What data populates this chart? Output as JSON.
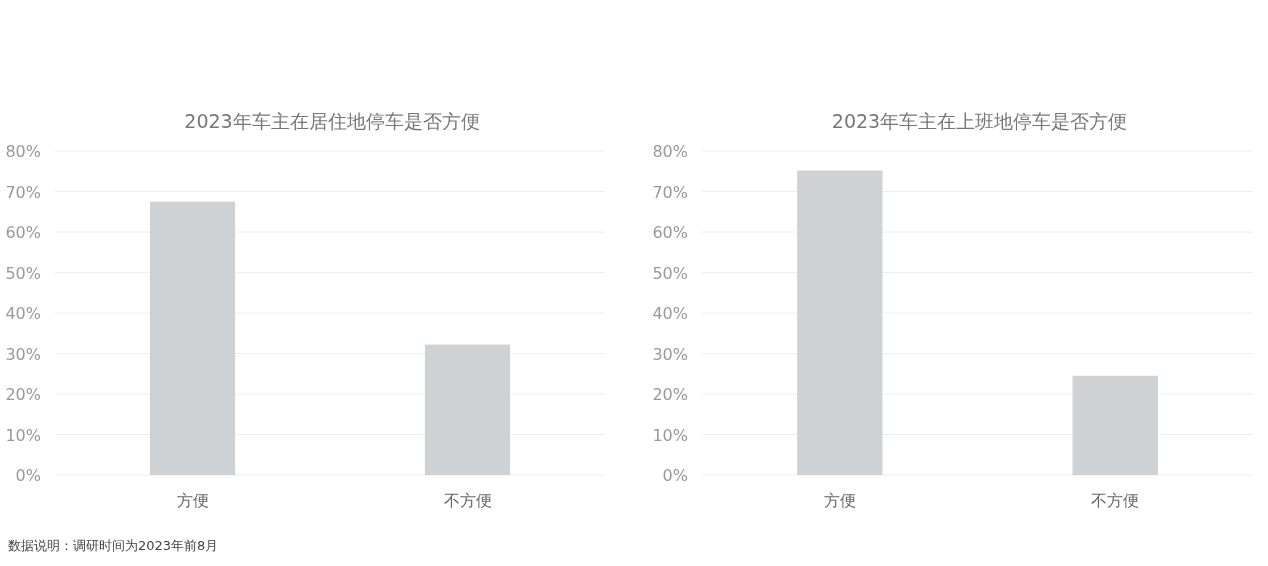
{
  "chart_data": [
    {
      "type": "bar",
      "title": "2023年车主在居住地停车是否方便",
      "categories": [
        "方便",
        "不方便"
      ],
      "values": [
        67.5,
        32.2
      ],
      "color": "#cfd2d5",
      "ylim": [
        0,
        80
      ],
      "yticks": [
        {
          "value": 0,
          "label": "0%"
        },
        {
          "value": 10,
          "label": "10%"
        },
        {
          "value": 20,
          "label": "20%"
        },
        {
          "value": 30,
          "label": "30%"
        },
        {
          "value": 40,
          "label": "40%"
        },
        {
          "value": 50,
          "label": "50%"
        },
        {
          "value": 60,
          "label": "60%"
        },
        {
          "value": 70,
          "label": "70%"
        },
        {
          "value": 80,
          "label": "80%"
        }
      ],
      "grid": "y",
      "annotations": [
        "数据说明：调研时间为2023年前8月"
      ]
    },
    {
      "type": "bar",
      "title": "2023年车主在上班地停车是否方便",
      "categories": [
        "方便",
        "不方便"
      ],
      "values": [
        75.2,
        24.5
      ],
      "color": "#cfd2d5",
      "ylim": [
        0,
        80
      ],
      "yticks": [
        {
          "value": 0,
          "label": "0%"
        },
        {
          "value": 10,
          "label": "10%"
        },
        {
          "value": 20,
          "label": "20%"
        },
        {
          "value": 30,
          "label": "30%"
        },
        {
          "value": 40,
          "label": "40%"
        },
        {
          "value": 50,
          "label": "50%"
        },
        {
          "value": 60,
          "label": "60%"
        },
        {
          "value": 70,
          "label": "70%"
        },
        {
          "value": 80,
          "label": "80%"
        }
      ],
      "grid": "y"
    }
  ]
}
